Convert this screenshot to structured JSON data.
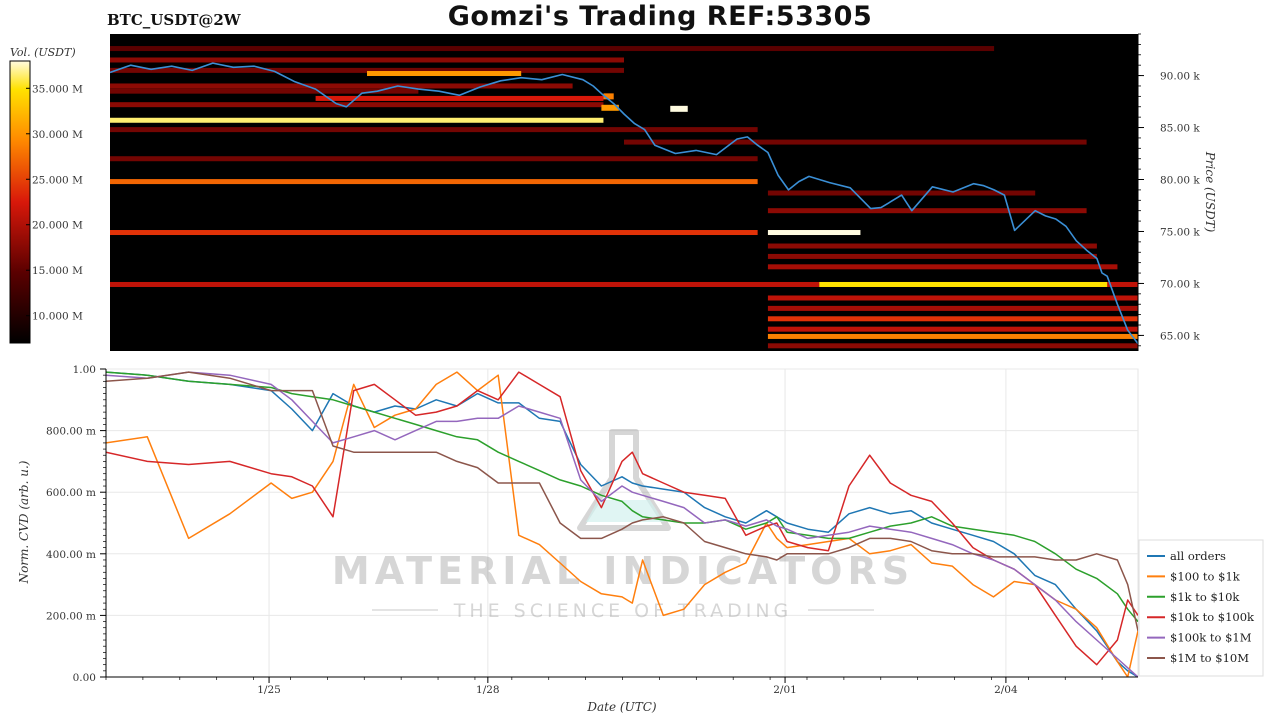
{
  "header": {
    "symbol": "BTC_USDT@2W",
    "title": "Gomzi's Trading REF:53305"
  },
  "colorbar": {
    "label": "Vol. (USDT)",
    "ticks": [
      "35.000 M",
      "30.000 M",
      "25.000 M",
      "20.000 M",
      "15.000 M",
      "10.000 M"
    ],
    "tick_values": [
      35,
      30,
      25,
      20,
      15,
      10
    ]
  },
  "watermark": {
    "line1": "MATERIAL INDICATORS",
    "line2": "THE SCIENCE OF TRADING"
  },
  "colors": {
    "price_line": "#3a8fd6",
    "heatmap_bg": "#000000"
  },
  "chart_data": [
    {
      "type": "heatmap",
      "ylabel": "Price (USDT)",
      "ylim": [
        63.5,
        94
      ],
      "yunit": "k",
      "y_ticks": [
        {
          "value": 90,
          "label": "90.00 k"
        },
        {
          "value": 85,
          "label": "85.00 k"
        },
        {
          "value": 80,
          "label": "80.00 k"
        },
        {
          "value": 75,
          "label": "75.00 k"
        },
        {
          "value": 70,
          "label": "70.00 k"
        },
        {
          "value": 65,
          "label": "65.00 k"
        }
      ],
      "bands": [
        {
          "price": 92.6,
          "start": 0.0,
          "end": 0.86,
          "level": 0.25
        },
        {
          "price": 91.5,
          "start": 0.0,
          "end": 0.5,
          "level": 0.35
        },
        {
          "price": 90.5,
          "start": 0.0,
          "end": 0.5,
          "level": 0.3
        },
        {
          "price": 90.2,
          "start": 0.25,
          "end": 0.4,
          "level": 0.75
        },
        {
          "price": 89.0,
          "start": 0.0,
          "end": 0.45,
          "level": 0.35
        },
        {
          "price": 88.5,
          "start": 0.0,
          "end": 0.3,
          "level": 0.3
        },
        {
          "price": 87.8,
          "start": 0.2,
          "end": 0.48,
          "level": 0.5
        },
        {
          "price": 87.2,
          "start": 0.0,
          "end": 0.48,
          "level": 0.35
        },
        {
          "price": 85.7,
          "start": 0.0,
          "end": 0.48,
          "level": 0.95
        },
        {
          "price": 84.8,
          "start": 0.0,
          "end": 0.63,
          "level": 0.3
        },
        {
          "price": 83.6,
          "start": 0.5,
          "end": 0.95,
          "level": 0.3
        },
        {
          "price": 82.0,
          "start": 0.0,
          "end": 0.63,
          "level": 0.3
        },
        {
          "price": 79.8,
          "start": 0.0,
          "end": 0.63,
          "level": 0.65
        },
        {
          "price": 78.7,
          "start": 0.64,
          "end": 0.9,
          "level": 0.3
        },
        {
          "price": 77.0,
          "start": 0.64,
          "end": 0.95,
          "level": 0.35
        },
        {
          "price": 74.9,
          "start": 0.0,
          "end": 0.63,
          "level": 0.55
        },
        {
          "price": 74.9,
          "start": 0.64,
          "end": 0.73,
          "level": 1.0
        },
        {
          "price": 73.6,
          "start": 0.64,
          "end": 0.96,
          "level": 0.35
        },
        {
          "price": 72.6,
          "start": 0.64,
          "end": 0.96,
          "level": 0.35
        },
        {
          "price": 71.6,
          "start": 0.64,
          "end": 0.98,
          "level": 0.4
        },
        {
          "price": 69.9,
          "start": 0.0,
          "end": 1.0,
          "level": 0.45
        },
        {
          "price": 69.9,
          "start": 0.69,
          "end": 0.97,
          "level": 0.9
        },
        {
          "price": 68.6,
          "start": 0.64,
          "end": 1.0,
          "level": 0.45
        },
        {
          "price": 67.6,
          "start": 0.64,
          "end": 1.0,
          "level": 0.4
        },
        {
          "price": 66.6,
          "start": 0.64,
          "end": 1.0,
          "level": 0.55
        },
        {
          "price": 65.6,
          "start": 0.64,
          "end": 1.0,
          "level": 0.45
        },
        {
          "price": 64.9,
          "start": 0.64,
          "end": 1.0,
          "level": 0.7
        },
        {
          "price": 64.0,
          "start": 0.64,
          "end": 1.0,
          "level": 0.35
        }
      ],
      "blocks": [
        {
          "price": 86.8,
          "start": 0.545,
          "end": 0.562,
          "level": 1.0
        },
        {
          "price": 88.0,
          "start": 0.48,
          "end": 0.49,
          "level": 0.7
        },
        {
          "price": 86.9,
          "start": 0.478,
          "end": 0.495,
          "level": 0.75
        }
      ],
      "price_series": {
        "x": [
          0,
          0.02,
          0.04,
          0.06,
          0.08,
          0.1,
          0.12,
          0.14,
          0.16,
          0.18,
          0.2,
          0.22,
          0.23,
          0.245,
          0.26,
          0.28,
          0.3,
          0.32,
          0.34,
          0.36,
          0.38,
          0.4,
          0.42,
          0.44,
          0.46,
          0.47,
          0.48,
          0.49,
          0.5,
          0.51,
          0.52,
          0.53,
          0.55,
          0.57,
          0.59,
          0.61,
          0.62,
          0.63,
          0.64,
          0.65,
          0.66,
          0.67,
          0.68,
          0.7,
          0.72,
          0.74,
          0.75,
          0.77,
          0.78,
          0.8,
          0.82,
          0.84,
          0.85,
          0.86,
          0.87,
          0.88,
          0.9,
          0.91,
          0.92,
          0.93,
          0.94,
          0.95,
          0.96,
          0.965,
          0.97,
          0.98,
          0.99,
          1.0
        ],
        "y": [
          90.3,
          91.0,
          90.6,
          90.9,
          90.5,
          91.2,
          90.8,
          90.9,
          90.4,
          89.4,
          88.7,
          87.3,
          87.0,
          88.3,
          88.5,
          89.0,
          88.7,
          88.5,
          88.1,
          88.9,
          89.5,
          89.8,
          89.6,
          90.1,
          89.6,
          89.0,
          88.1,
          87.3,
          86.3,
          85.4,
          84.8,
          83.3,
          82.5,
          82.8,
          82.4,
          83.9,
          84.1,
          83.3,
          82.6,
          80.4,
          79.0,
          79.8,
          80.3,
          79.7,
          79.2,
          77.2,
          77.3,
          78.5,
          77.0,
          79.3,
          78.8,
          79.6,
          79.4,
          79.0,
          78.5,
          75.1,
          77.0,
          76.5,
          76.2,
          75.5,
          74.1,
          73.2,
          72.4,
          71.0,
          70.7,
          68.0,
          65.5,
          64.2
        ]
      }
    },
    {
      "type": "line",
      "xlabel": "Date (UTC)",
      "ylabel": "Norm. CVD (arb. u.)",
      "ylim": [
        0,
        1
      ],
      "xlim": [
        0,
        1
      ],
      "x_ticks": [
        {
          "value": 0.158,
          "label": "1/25"
        },
        {
          "value": 0.37,
          "label": "1/28"
        },
        {
          "value": 0.658,
          "label": "2/01"
        },
        {
          "value": 0.872,
          "label": "2/04"
        }
      ],
      "y_ticks": [
        {
          "value": 1.0,
          "label": "1.00"
        },
        {
          "value": 0.8,
          "label": "800.00 m"
        },
        {
          "value": 0.6,
          "label": "600.00 m"
        },
        {
          "value": 0.4,
          "label": "400.00 m"
        },
        {
          "value": 0.2,
          "label": "200.00 m"
        },
        {
          "value": 0.0,
          "label": "0.00"
        }
      ],
      "legend_position": "right",
      "x": [
        0,
        0.04,
        0.08,
        0.12,
        0.16,
        0.18,
        0.2,
        0.22,
        0.24,
        0.26,
        0.28,
        0.3,
        0.32,
        0.34,
        0.36,
        0.38,
        0.4,
        0.42,
        0.44,
        0.46,
        0.48,
        0.5,
        0.51,
        0.52,
        0.54,
        0.56,
        0.58,
        0.6,
        0.62,
        0.64,
        0.65,
        0.66,
        0.68,
        0.7,
        0.72,
        0.74,
        0.76,
        0.78,
        0.8,
        0.82,
        0.84,
        0.86,
        0.88,
        0.9,
        0.92,
        0.94,
        0.96,
        0.98,
        0.99,
        1.0
      ],
      "series": [
        {
          "name": "all orders",
          "color": "#1f77b4",
          "values": [
            0.99,
            0.98,
            0.96,
            0.95,
            0.93,
            0.87,
            0.8,
            0.92,
            0.88,
            0.86,
            0.88,
            0.87,
            0.9,
            0.88,
            0.92,
            0.89,
            0.89,
            0.84,
            0.83,
            0.69,
            0.62,
            0.65,
            0.63,
            0.62,
            0.61,
            0.6,
            0.55,
            0.52,
            0.5,
            0.54,
            0.52,
            0.5,
            0.48,
            0.47,
            0.53,
            0.55,
            0.53,
            0.54,
            0.5,
            0.48,
            0.46,
            0.44,
            0.4,
            0.33,
            0.3,
            0.22,
            0.15,
            0.05,
            0.02,
            0.0
          ]
        },
        {
          "name": "$100 to $1k",
          "color": "#ff7f0e",
          "values": [
            0.76,
            0.78,
            0.45,
            0.53,
            0.63,
            0.58,
            0.6,
            0.7,
            0.95,
            0.81,
            0.85,
            0.87,
            0.95,
            0.99,
            0.93,
            0.98,
            0.46,
            0.43,
            0.37,
            0.31,
            0.27,
            0.26,
            0.24,
            0.38,
            0.2,
            0.22,
            0.3,
            0.34,
            0.37,
            0.5,
            0.45,
            0.42,
            0.43,
            0.44,
            0.45,
            0.4,
            0.41,
            0.43,
            0.37,
            0.36,
            0.3,
            0.26,
            0.31,
            0.3,
            0.25,
            0.22,
            0.16,
            0.05,
            0.0,
            0.15
          ]
        },
        {
          "name": "$1k to $10k",
          "color": "#2ca02c",
          "values": [
            0.99,
            0.98,
            0.96,
            0.95,
            0.94,
            0.92,
            0.91,
            0.9,
            0.88,
            0.86,
            0.84,
            0.82,
            0.8,
            0.78,
            0.77,
            0.73,
            0.7,
            0.67,
            0.64,
            0.62,
            0.59,
            0.57,
            0.54,
            0.52,
            0.51,
            0.5,
            0.5,
            0.51,
            0.48,
            0.5,
            0.52,
            0.47,
            0.46,
            0.45,
            0.45,
            0.47,
            0.49,
            0.5,
            0.52,
            0.49,
            0.48,
            0.47,
            0.46,
            0.44,
            0.4,
            0.35,
            0.32,
            0.27,
            0.22,
            0.18
          ]
        },
        {
          "name": "$10k to $100k",
          "color": "#d62728",
          "values": [
            0.73,
            0.7,
            0.69,
            0.7,
            0.66,
            0.65,
            0.62,
            0.52,
            0.93,
            0.95,
            0.9,
            0.85,
            0.86,
            0.88,
            0.93,
            0.9,
            0.99,
            0.95,
            0.91,
            0.67,
            0.55,
            0.7,
            0.73,
            0.66,
            0.63,
            0.6,
            0.59,
            0.58,
            0.46,
            0.49,
            0.5,
            0.44,
            0.42,
            0.41,
            0.62,
            0.72,
            0.63,
            0.59,
            0.57,
            0.5,
            0.42,
            0.38,
            0.35,
            0.3,
            0.2,
            0.1,
            0.04,
            0.12,
            0.25,
            0.2
          ]
        },
        {
          "name": "$100k to $1M",
          "color": "#9467bd",
          "values": [
            0.98,
            0.97,
            0.99,
            0.98,
            0.95,
            0.9,
            0.83,
            0.76,
            0.78,
            0.8,
            0.77,
            0.8,
            0.83,
            0.83,
            0.84,
            0.84,
            0.88,
            0.86,
            0.84,
            0.64,
            0.57,
            0.62,
            0.6,
            0.59,
            0.57,
            0.55,
            0.5,
            0.51,
            0.49,
            0.51,
            0.49,
            0.48,
            0.45,
            0.46,
            0.47,
            0.49,
            0.48,
            0.47,
            0.45,
            0.43,
            0.4,
            0.38,
            0.35,
            0.3,
            0.25,
            0.18,
            0.12,
            0.06,
            0.03,
            0.0
          ]
        },
        {
          "name": "$1M to $10M",
          "color": "#8c564b",
          "values": [
            0.96,
            0.97,
            0.99,
            0.97,
            0.93,
            0.93,
            0.93,
            0.75,
            0.73,
            0.73,
            0.73,
            0.73,
            0.73,
            0.7,
            0.68,
            0.63,
            0.63,
            0.63,
            0.5,
            0.45,
            0.45,
            0.48,
            0.5,
            0.51,
            0.52,
            0.5,
            0.44,
            0.42,
            0.4,
            0.39,
            0.38,
            0.4,
            0.4,
            0.4,
            0.42,
            0.45,
            0.45,
            0.44,
            0.41,
            0.4,
            0.4,
            0.39,
            0.39,
            0.39,
            0.38,
            0.38,
            0.4,
            0.38,
            0.3,
            0.15
          ]
        }
      ]
    }
  ]
}
